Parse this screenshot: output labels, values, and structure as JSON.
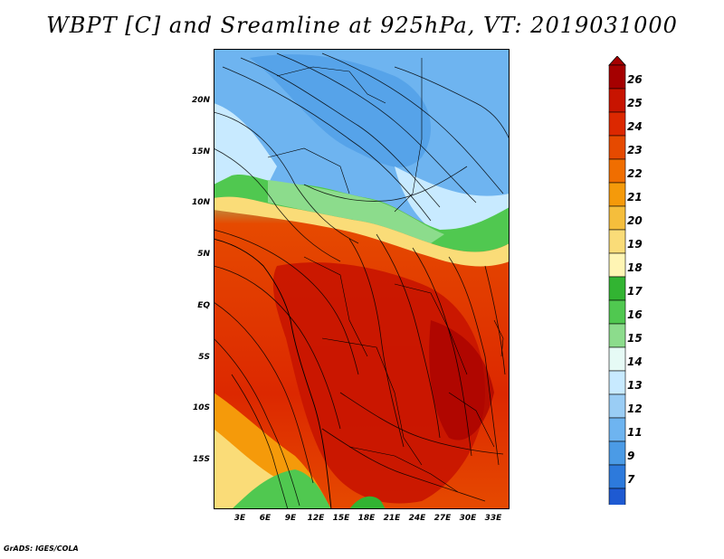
{
  "title": "WBPT [C] and Sreamline at 925hPa, VT: 2019031000",
  "credit": "GrADS: IGES/COLA",
  "chart_data": {
    "type": "heatmap",
    "overlay": "streamlines",
    "title": "WBPT [C] and Sreamline at 925hPa, VT: 2019031000",
    "variable": "Wet-bulb potential temperature [C]",
    "level": "925hPa",
    "valid_time": "2019031000",
    "x_ticks": [
      "3E",
      "6E",
      "9E",
      "12E",
      "15E",
      "18E",
      "21E",
      "24E",
      "27E",
      "30E",
      "33E"
    ],
    "y_ticks": [
      "20N",
      "15N",
      "10N",
      "5N",
      "EQ",
      "5S",
      "10S",
      "15S"
    ],
    "lon_range": [
      0,
      35
    ],
    "lat_range": [
      -20,
      24
    ],
    "colorbar": {
      "labels": [
        "26",
        "25",
        "24",
        "23",
        "22",
        "21",
        "20",
        "19",
        "18",
        "17",
        "16",
        "15",
        "14",
        "13",
        "12",
        "11",
        "9",
        "7"
      ],
      "colors": [
        "#a50000",
        "#c81400",
        "#dc2800",
        "#e64a00",
        "#f06e00",
        "#f59a0a",
        "#f5be3c",
        "#fadc78",
        "#fff5b4",
        "#32b432",
        "#50c850",
        "#8cdc8c",
        "#e6faf5",
        "#c8eaff",
        "#9acdf5",
        "#6eb4f0",
        "#4b9be6",
        "#2d7adc",
        "#1e5ad2"
      ]
    }
  }
}
